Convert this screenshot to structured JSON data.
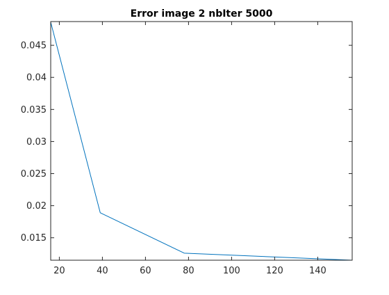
{
  "chart_data": {
    "type": "line",
    "title": "Error image 2 nbIter 5000",
    "xlabel": "",
    "ylabel": "",
    "xlim": [
      16,
      156
    ],
    "ylim": [
      0.0115,
      0.0487
    ],
    "x_ticks": [
      20,
      40,
      60,
      80,
      100,
      120,
      140
    ],
    "y_ticks": [
      0.015,
      0.02,
      0.025,
      0.03,
      0.035,
      0.04,
      0.045
    ],
    "x_tick_labels": [
      "20",
      "40",
      "60",
      "80",
      "100",
      "120",
      "140"
    ],
    "y_tick_labels": [
      "0.015",
      "0.02",
      "0.025",
      "0.03",
      "0.035",
      "0.04",
      "0.045"
    ],
    "grid": false,
    "legend": "none",
    "series": [
      {
        "color": "#0072bd",
        "x": [
          16,
          39,
          78,
          156
        ],
        "y": [
          0.0486,
          0.0189,
          0.0126,
          0.0115
        ]
      }
    ]
  }
}
